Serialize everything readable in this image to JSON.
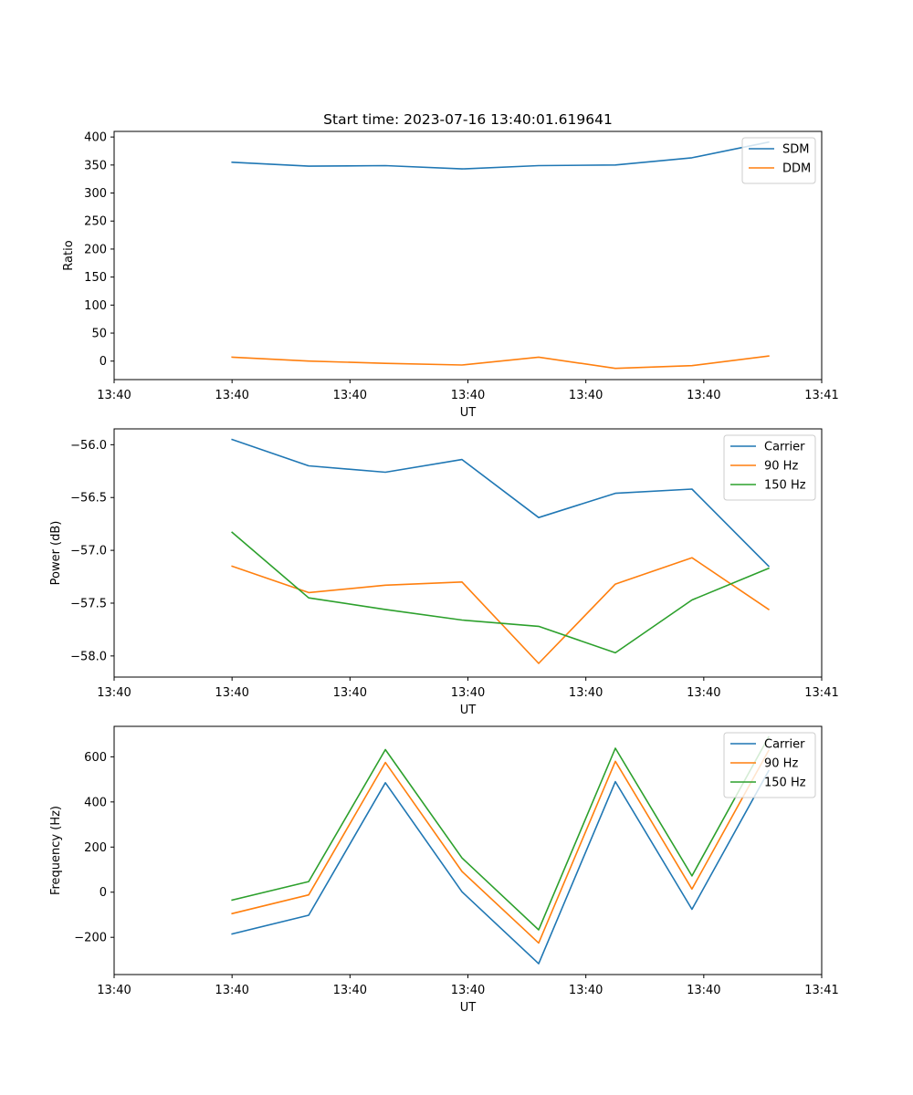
{
  "chart_data": [
    {
      "type": "line",
      "title": "Start time: 2023-07-16 13:40:01.619641",
      "xlabel": "UT",
      "ylabel": "Ratio",
      "x": [
        1.0,
        1.65,
        2.3,
        2.95,
        3.6,
        4.25,
        4.9,
        5.55
      ],
      "xlim": [
        0,
        6
      ],
      "xticks": [
        0,
        1,
        2,
        3,
        4,
        5,
        6
      ],
      "xtick_labels": [
        "13:40",
        "13:40",
        "13:40",
        "13:40",
        "13:40",
        "13:40",
        "13:41"
      ],
      "ylim": [
        -33,
        410
      ],
      "yticks": [
        0,
        50,
        100,
        150,
        200,
        250,
        300,
        350,
        400
      ],
      "ytick_labels": [
        "0",
        "50",
        "100",
        "150",
        "200",
        "250",
        "300",
        "350",
        "400"
      ],
      "legend_location": "top-right",
      "series": [
        {
          "name": "SDM",
          "color": "#1f77b4",
          "values": [
            355,
            348,
            349,
            343,
            349,
            350,
            363,
            391
          ]
        },
        {
          "name": "DDM",
          "color": "#ff7f0e",
          "values": [
            7,
            0,
            -4,
            -7,
            7,
            -13,
            -8,
            9
          ]
        }
      ]
    },
    {
      "type": "line",
      "title": "",
      "xlabel": "UT",
      "ylabel": "Power (dB)",
      "x": [
        1.0,
        1.65,
        2.3,
        2.95,
        3.6,
        4.25,
        4.9,
        5.55
      ],
      "xlim": [
        0,
        6
      ],
      "xticks": [
        0,
        1,
        2,
        3,
        4,
        5,
        6
      ],
      "xtick_labels": [
        "13:40",
        "13:40",
        "13:40",
        "13:40",
        "13:40",
        "13:40",
        "13:41"
      ],
      "ylim": [
        -58.2,
        -55.85
      ],
      "yticks": [
        -58.0,
        -57.5,
        -57.0,
        -56.5,
        -56.0
      ],
      "ytick_labels": [
        "−58.0",
        "−57.5",
        "−57.0",
        "−56.5",
        "−56.0"
      ],
      "legend_location": "top-right",
      "series": [
        {
          "name": "Carrier",
          "color": "#1f77b4",
          "values": [
            -55.95,
            -56.2,
            -56.26,
            -56.14,
            -56.69,
            -56.46,
            -56.42,
            -57.15
          ]
        },
        {
          "name": "90 Hz",
          "color": "#ff7f0e",
          "values": [
            -57.15,
            -57.4,
            -57.33,
            -57.3,
            -58.07,
            -57.32,
            -57.07,
            -57.56
          ]
        },
        {
          "name": "150 Hz",
          "color": "#2ca02c",
          "values": [
            -56.83,
            -57.45,
            -57.56,
            -57.66,
            -57.72,
            -57.97,
            -57.47,
            -57.17
          ]
        }
      ]
    },
    {
      "type": "line",
      "title": "",
      "xlabel": "UT",
      "ylabel": "Frequency (Hz)",
      "x": [
        1.0,
        1.65,
        2.3,
        2.95,
        3.6,
        4.25,
        4.9,
        5.55
      ],
      "xlim": [
        0,
        6
      ],
      "xticks": [
        0,
        1,
        2,
        3,
        4,
        5,
        6
      ],
      "xtick_labels": [
        "13:40",
        "13:40",
        "13:40",
        "13:40",
        "13:40",
        "13:40",
        "13:41"
      ],
      "ylim": [
        -365,
        735
      ],
      "yticks": [
        -200,
        0,
        200,
        400,
        600
      ],
      "ytick_labels": [
        "−200",
        "0",
        "200",
        "400",
        "600"
      ],
      "legend_location": "top-right",
      "series": [
        {
          "name": "Carrier",
          "color": "#1f77b4",
          "values": [
            -185,
            -102,
            485,
            2,
            -317,
            490,
            -76,
            538
          ]
        },
        {
          "name": "90 Hz",
          "color": "#ff7f0e",
          "values": [
            -95,
            -12,
            575,
            92,
            -225,
            580,
            14,
            628
          ]
        },
        {
          "name": "150 Hz",
          "color": "#2ca02c",
          "values": [
            -35,
            47,
            632,
            152,
            -167,
            638,
            72,
            688
          ]
        }
      ]
    }
  ]
}
